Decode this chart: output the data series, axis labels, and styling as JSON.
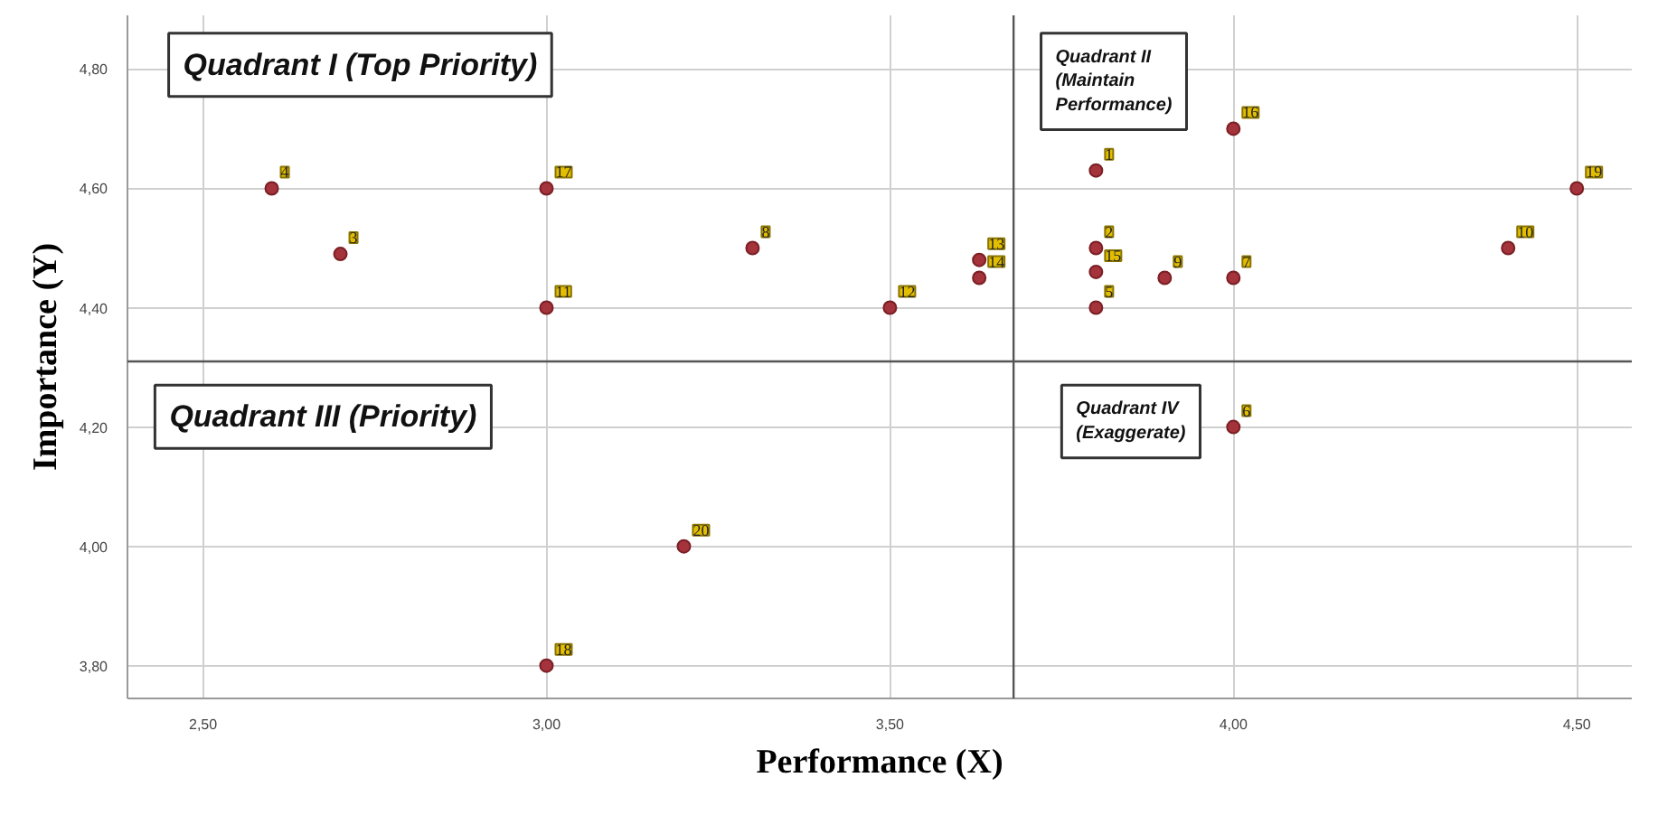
{
  "chart_data": {
    "type": "scatter",
    "xlabel": "Performance (X)",
    "ylabel": "Importance (Y)",
    "x": [
      3.8,
      3.8,
      2.7,
      2.6,
      3.8,
      4.0,
      4.0,
      3.3,
      3.9,
      4.4,
      3.0,
      3.5,
      3.63,
      3.63,
      3.8,
      4.0,
      3.0,
      3.0,
      4.5,
      3.2
    ],
    "series": [
      {
        "color": "#a5333b",
        "values": [
          4.63,
          4.5,
          4.49,
          4.6,
          4.4,
          4.2,
          4.45,
          4.5,
          4.45,
          4.5,
          4.4,
          4.4,
          4.48,
          4.45,
          4.46,
          4.7,
          4.6,
          3.8,
          4.6,
          4.0
        ]
      }
    ],
    "xlim": [
      2.39,
      4.58
    ],
    "ylim": [
      3.745,
      4.89
    ],
    "xticks": [
      {
        "value": 2.5,
        "label": "2,50"
      },
      {
        "value": 3.0,
        "label": "3,00"
      },
      {
        "value": 3.5,
        "label": "3,50"
      },
      {
        "value": 4.0,
        "label": "4,00"
      },
      {
        "value": 4.5,
        "label": "4,50"
      }
    ],
    "yticks": [
      {
        "value": 3.8,
        "label": "3,80"
      },
      {
        "value": 4.0,
        "label": "4,00"
      },
      {
        "value": 4.2,
        "label": "4,20"
      },
      {
        "value": 4.4,
        "label": "4,40"
      },
      {
        "value": 4.6,
        "label": "4,60"
      },
      {
        "value": 4.8,
        "label": "4,80"
      }
    ],
    "ref_lines": [
      {
        "axis": "y",
        "value": 4.31,
        "color": "#555555"
      },
      {
        "axis": "x",
        "value": 3.68,
        "color": "#555555"
      }
    ],
    "annotations": [
      "Quadrant I (Top Priority)",
      "Quadrant II (Maintain Performance)",
      "Quadrant III (Priority)",
      "Quadrant IV (Exaggerate)",
      {
        "text": "1",
        "x": 3.8,
        "y": 4.63
      },
      {
        "text": "2",
        "x": 3.8,
        "y": 4.5
      },
      {
        "text": "3",
        "x": 2.7,
        "y": 4.49
      },
      {
        "text": "4",
        "x": 2.6,
        "y": 4.6
      },
      {
        "text": "5",
        "x": 3.8,
        "y": 4.4
      },
      {
        "text": "6",
        "x": 4.0,
        "y": 4.2
      },
      {
        "text": "7",
        "x": 4.0,
        "y": 4.45
      },
      {
        "text": "8",
        "x": 3.3,
        "y": 4.5
      },
      {
        "text": "9",
        "x": 3.9,
        "y": 4.45
      },
      {
        "text": "10",
        "x": 4.4,
        "y": 4.5
      },
      {
        "text": "11",
        "x": 3.0,
        "y": 4.4
      },
      {
        "text": "12",
        "x": 3.5,
        "y": 4.4
      },
      {
        "text": "13",
        "x": 3.63,
        "y": 4.48
      },
      {
        "text": "14",
        "x": 3.63,
        "y": 4.45
      },
      {
        "text": "15",
        "x": 3.8,
        "y": 4.46
      },
      {
        "text": "16",
        "x": 4.0,
        "y": 4.7
      },
      {
        "text": "17",
        "x": 3.0,
        "y": 4.6
      },
      {
        "text": "18",
        "x": 3.0,
        "y": 3.8
      },
      {
        "text": "19",
        "x": 4.5,
        "y": 4.6
      },
      {
        "text": "20",
        "x": 3.2,
        "y": 4.0
      }
    ],
    "grid": true,
    "marker": "circle"
  }
}
